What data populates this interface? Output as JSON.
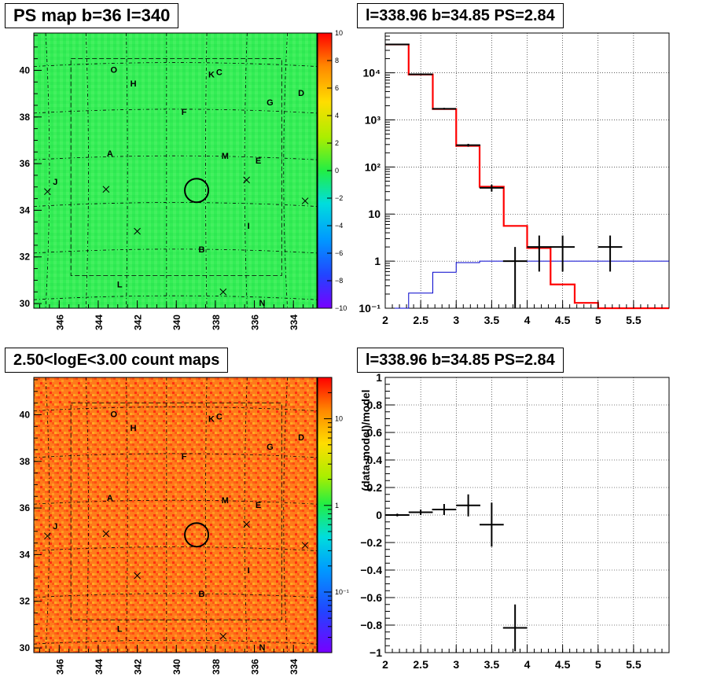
{
  "titles": {
    "tl": "PS map b=36 l=340",
    "tr": "l=338.96 b=34.85 PS=2.84",
    "bl": "2.50<logE<3.00 count maps",
    "br": "l=338.96 b=34.85 PS=2.84"
  },
  "colors": {
    "ps_map_fill": "#33ee55",
    "count_map_fill": "#ff7a1a",
    "model_red": "#ff0000",
    "model_blue": "#0000cc",
    "data": "#000000"
  },
  "maps": {
    "x_ticks": [
      "346",
      "344",
      "342",
      "340",
      "338",
      "336",
      "334"
    ],
    "y_ticks": [
      "30",
      "32",
      "34",
      "36",
      "38",
      "40"
    ],
    "sources": [
      {
        "label": "O",
        "l": 343.2,
        "b": 39.9
      },
      {
        "label": "H",
        "l": 342.2,
        "b": 39.3
      },
      {
        "label": "K",
        "l": 338.2,
        "b": 39.7
      },
      {
        "label": "C",
        "l": 337.8,
        "b": 39.8
      },
      {
        "label": "D",
        "l": 333.6,
        "b": 38.9
      },
      {
        "label": "G",
        "l": 335.2,
        "b": 38.5
      },
      {
        "label": "F",
        "l": 339.6,
        "b": 38.1
      },
      {
        "label": "A",
        "l": 343.4,
        "b": 36.3
      },
      {
        "label": "M",
        "l": 337.5,
        "b": 36.2
      },
      {
        "label": "E",
        "l": 335.8,
        "b": 36.0
      },
      {
        "label": "J",
        "l": 346.2,
        "b": 35.1
      },
      {
        "label": "I",
        "l": 336.3,
        "b": 33.2
      },
      {
        "label": "B",
        "l": 338.7,
        "b": 32.2
      },
      {
        "label": "L",
        "l": 342.9,
        "b": 30.7
      },
      {
        "label": "N",
        "l": 335.6,
        "b": 29.9
      }
    ],
    "crosses": [
      {
        "l": 346.6,
        "b": 34.8
      },
      {
        "l": 343.6,
        "b": 34.9
      },
      {
        "l": 342.0,
        "b": 33.1
      },
      {
        "l": 336.4,
        "b": 35.3
      },
      {
        "l": 333.4,
        "b": 34.4
      },
      {
        "l": 337.6,
        "b": 30.5
      }
    ]
  },
  "colorbars": {
    "ps": [
      "10",
      "8",
      "6",
      "4",
      "2",
      "0",
      "−2",
      "−4",
      "−6",
      "−8",
      "−10"
    ],
    "count": {
      "major": [
        "10",
        "1",
        "10⁻¹"
      ]
    }
  },
  "chart_data": [
    {
      "type": "line",
      "scale": "log-y",
      "xlim": [
        2,
        6
      ],
      "ylim": [
        0.1,
        70000
      ],
      "x_ticks": [
        "2",
        "2.5",
        "3",
        "3.5",
        "4",
        "4.5",
        "5",
        "5.5"
      ],
      "y_ticks": [
        "10⁻¹",
        "1",
        "10",
        "10²",
        "10³",
        "10⁴"
      ],
      "grid": true,
      "series": [
        {
          "values": {
            "edges": [
              2.0,
              2.33,
              2.67,
              3.0,
              3.33,
              3.67,
              4.0,
              4.33,
              4.67,
              5.0,
              5.33,
              5.67,
              6.0
            ],
            "y": [
              40000,
              9200,
              1700,
              280,
              38,
              5.6,
              1.9,
              0.32,
              0.13,
              0.1,
              0.1,
              0.1
            ]
          }
        },
        {
          "values": {
            "edges": [
              2.0,
              2.33,
              2.67,
              3.0,
              3.33,
              3.67,
              4.0,
              4.33,
              4.67,
              5.0,
              5.33,
              5.67,
              6.0
            ],
            "y": [
              0.1,
              0.21,
              0.58,
              0.93,
              1.0,
              1.0,
              1.0,
              1.0,
              1.0,
              1.0,
              1.0,
              1.0
            ]
          }
        },
        {
          "values": [
            {
              "x": 2.17,
              "y": 40000,
              "xerr": 0.17,
              "ylo": 39000,
              "yhi": 41000
            },
            {
              "x": 2.5,
              "y": 9300,
              "xerr": 0.17,
              "ylo": 9100,
              "yhi": 9500
            },
            {
              "x": 2.83,
              "y": 1720,
              "xerr": 0.17,
              "ylo": 1650,
              "yhi": 1800
            },
            {
              "x": 3.17,
              "y": 290,
              "xerr": 0.17,
              "ylo": 270,
              "yhi": 310
            },
            {
              "x": 3.5,
              "y": 36,
              "xerr": 0.17,
              "ylo": 30,
              "yhi": 42
            },
            {
              "x": 3.83,
              "y": 1,
              "xerr": 0.17,
              "ylo": 0.1,
              "yhi": 2
            },
            {
              "x": 4.17,
              "y": 2,
              "xerr": 0.17,
              "ylo": 0.6,
              "yhi": 3.5
            },
            {
              "x": 4.5,
              "y": 2,
              "xerr": 0.17,
              "ylo": 0.6,
              "yhi": 3.5
            },
            {
              "x": 5.17,
              "y": 2,
              "xerr": 0.17,
              "ylo": 0.6,
              "yhi": 3.5
            }
          ]
        }
      ]
    },
    {
      "type": "scatter",
      "xlim": [
        2,
        6
      ],
      "ylim": [
        -1,
        1
      ],
      "ylabel": "(data-model)/model",
      "x_ticks": [
        "2",
        "2.5",
        "3",
        "3.5",
        "4",
        "4.5",
        "5",
        "5.5"
      ],
      "y_ticks": [
        "−1",
        "−0.8",
        "−0.6",
        "−0.4",
        "−0.2",
        "0",
        "0.2",
        "0.4",
        "0.6",
        "0.8",
        "1"
      ],
      "grid": true,
      "series": [
        {
          "values": [
            {
              "x": 2.17,
              "y": 0.0,
              "xerr": 0.17,
              "yerr": 0.01
            },
            {
              "x": 2.5,
              "y": 0.02,
              "xerr": 0.17,
              "yerr": 0.02
            },
            {
              "x": 2.83,
              "y": 0.04,
              "xerr": 0.17,
              "yerr": 0.04
            },
            {
              "x": 3.17,
              "y": 0.07,
              "xerr": 0.17,
              "yerr": 0.08
            },
            {
              "x": 3.5,
              "y": -0.07,
              "xerr": 0.17,
              "yerr": 0.16
            },
            {
              "x": 3.83,
              "y": -0.82,
              "xerr": 0.17,
              "yerr": 0.17
            }
          ]
        }
      ]
    }
  ]
}
